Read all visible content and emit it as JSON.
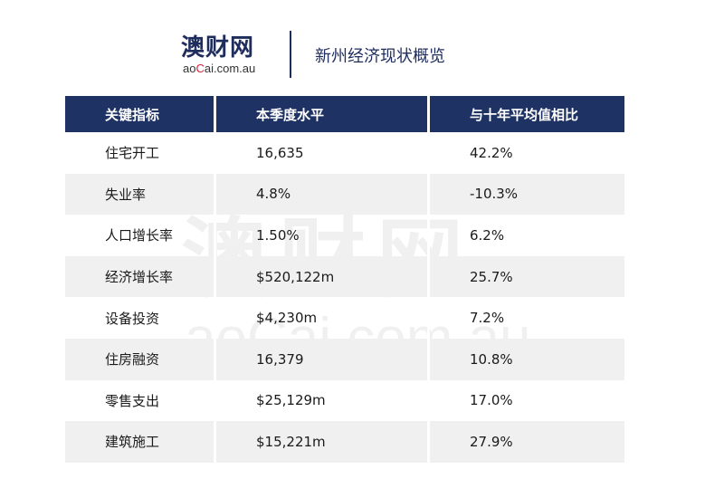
{
  "header": {
    "logo_cn": "澳财网",
    "logo_en_pre": "ao",
    "logo_en_red": "C",
    "logo_en_post": "ai.com.au",
    "title": "新州经济现状概览"
  },
  "table": {
    "columns": [
      "关键指标",
      "本季度水平",
      "与十年平均值相比"
    ],
    "rows": [
      [
        "住宅开工",
        "16,635",
        "42.2%"
      ],
      [
        "失业率",
        "4.8%",
        "-10.3%"
      ],
      [
        "人口增长率",
        "1.50%",
        "6.2%"
      ],
      [
        "经济增长率",
        "$520,122m",
        "25.7%"
      ],
      [
        "设备投资",
        "$4,230m",
        "7.2%"
      ],
      [
        "住房融资",
        "16,379",
        "10.8%"
      ],
      [
        "零售支出",
        "$25,129m",
        "17.0%"
      ],
      [
        "建筑施工",
        "$15,221m",
        "27.9%"
      ]
    ]
  },
  "watermark": {
    "cn": "澳财网",
    "en": "aoCai.com.au"
  },
  "colors": {
    "header_bg": "#1f3264",
    "brand_navy": "#1f2d5c",
    "brand_red": "#d0203a",
    "row_shade": "#f0f0f0"
  }
}
